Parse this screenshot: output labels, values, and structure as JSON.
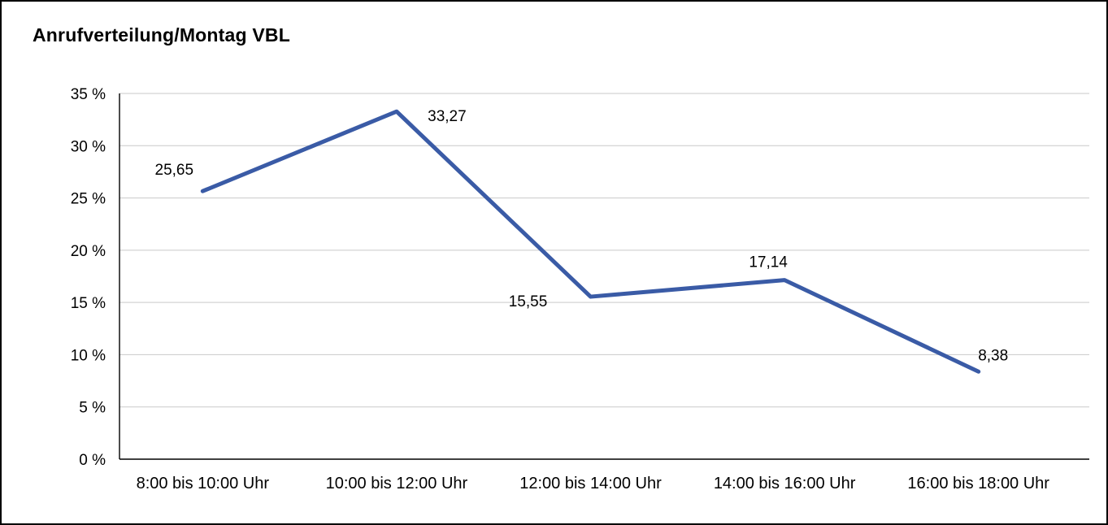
{
  "title": "Anrufverteilung/Montag VBL",
  "chart_data": {
    "type": "line",
    "title": "Anrufverteilung/Montag VBL",
    "categories": [
      "8:00 bis 10:00 Uhr",
      "10:00 bis 12:00 Uhr",
      "12:00 bis 14:00 Uhr",
      "14:00 bis 16:00 Uhr",
      "16:00 bis 18:00 Uhr"
    ],
    "values": [
      25.65,
      33.27,
      15.55,
      17.14,
      8.38
    ],
    "value_labels": [
      "25,65",
      "33,27",
      "15,55",
      "17,14",
      "8,38"
    ],
    "ylim": [
      0,
      35
    ],
    "ytick_step": 5,
    "ytick_labels": [
      "0 %",
      "5 %",
      "10 %",
      "15 %",
      "20 %",
      "25 %",
      "30 %",
      "35 %"
    ],
    "xlabel": "",
    "ylabel": "",
    "legend": "none",
    "grid": "horizontal",
    "line_color": "#3A5BA6",
    "grid_color": "#c9c9c9",
    "axis_color": "#000000"
  }
}
